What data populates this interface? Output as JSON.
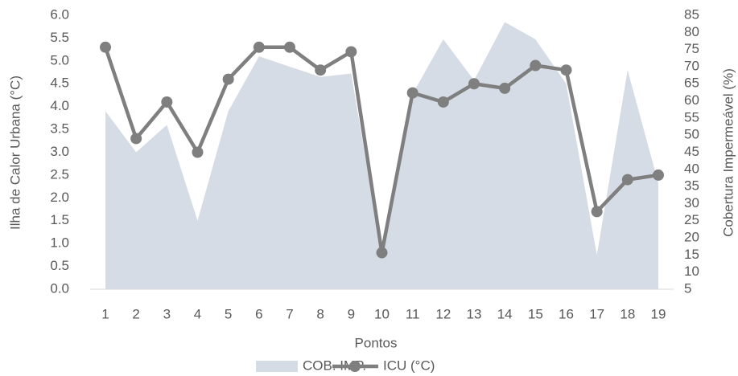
{
  "chart_data": {
    "type": "line_area",
    "xlabel": "Pontos",
    "ylabel": "Ilha de Calor Urbana (°C)",
    "y2label": "Cobertura Impermeável (%)",
    "categories": [
      "1",
      "2",
      "3",
      "4",
      "5",
      "6",
      "7",
      "8",
      "9",
      "10",
      "11",
      "12",
      "13",
      "14",
      "15",
      "16",
      "17",
      "18",
      "19"
    ],
    "series": [
      {
        "name": "COB. IMP.",
        "kind": "area",
        "axis": "y2",
        "color": "#d6dce5",
        "values": [
          57,
          45,
          53,
          25,
          57,
          73,
          70,
          67,
          68,
          15,
          62,
          78,
          66,
          83,
          78,
          65,
          15,
          69,
          36
        ]
      },
      {
        "name": "ICU (°C)",
        "kind": "line",
        "color": "#7f7f7f",
        "values": [
          5.3,
          3.3,
          4.1,
          3.0,
          4.6,
          5.3,
          5.3,
          4.8,
          5.2,
          0.8,
          4.3,
          4.1,
          4.5,
          4.4,
          4.9,
          4.8,
          1.7,
          2.4,
          2.5
        ]
      }
    ],
    "ylim": [
      0,
      6
    ],
    "yticks": [
      {
        "value": 0,
        "label": "0.0"
      },
      0.5,
      {
        "value": 1,
        "label": "1.0"
      },
      1.5,
      {
        "value": 2,
        "label": "2.0"
      },
      2.5,
      {
        "value": 3,
        "label": "3.0"
      },
      3.5,
      {
        "value": 4,
        "label": "4.0"
      },
      4.5,
      {
        "value": 5,
        "label": "5.0"
      },
      5.5,
      {
        "value": 6,
        "label": "6.0"
      }
    ],
    "y2lim": [
      5,
      85
    ],
    "y2ticks": [
      5,
      10,
      15,
      20,
      25,
      30,
      35,
      40,
      45,
      50,
      55,
      60,
      65,
      70,
      75,
      80,
      85
    ],
    "grid": false,
    "legend": "bottom"
  }
}
